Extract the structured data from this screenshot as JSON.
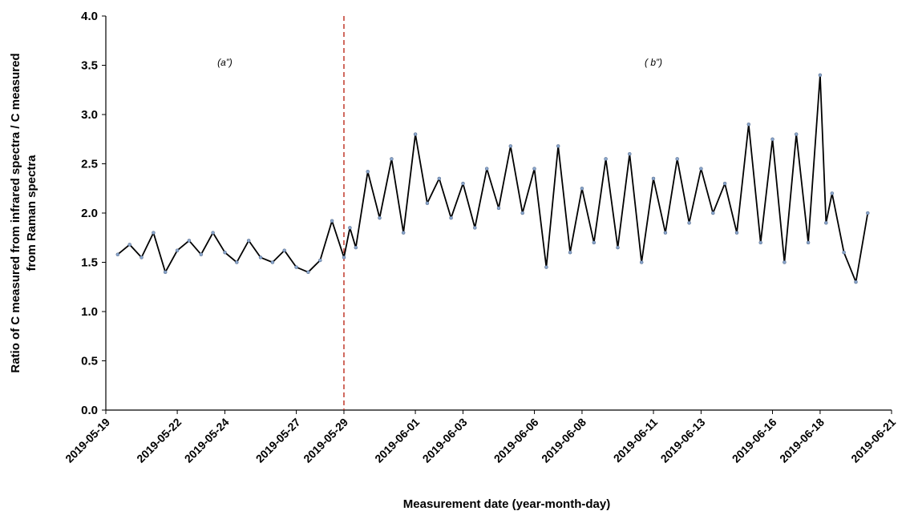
{
  "chart_data": {
    "type": "line",
    "title": "",
    "xlabel": "Measurement date (year-month-day)",
    "ylabel_lines": [
      "Ratio of C measured from infrared spectra / C measured",
      "from Raman spectra"
    ],
    "ylim": [
      0,
      4.0
    ],
    "yticks": [
      "0.0",
      "0.5",
      "1.0",
      "1.5",
      "2.0",
      "2.5",
      "3.0",
      "3.5",
      "4.0"
    ],
    "xlim": [
      "2019-05-19",
      "2019-06-21"
    ],
    "xticks": [
      "2019-05-19",
      "2019-05-22",
      "2019-05-24",
      "2019-05-27",
      "2019-05-29",
      "2019-06-01",
      "2019-06-03",
      "2019-06-06",
      "2019-06-08",
      "2019-06-11",
      "2019-06-13",
      "2019-06-16",
      "2019-06-18",
      "2019-06-21"
    ],
    "divider": {
      "x": "2019-05-29",
      "color": "#c0392b",
      "style": "dashed"
    },
    "regions": [
      {
        "label": "(a”)",
        "x": "2019-05-24"
      },
      {
        "label": "( b”)",
        "x": "2019-06-11"
      }
    ],
    "series": [
      {
        "line_color": "#000000",
        "marker_color": "#8aa6cc",
        "x": [
          "2019-05-19 12:00",
          "2019-05-20 00:00",
          "2019-05-20 12:00",
          "2019-05-21 00:00",
          "2019-05-21 12:00",
          "2019-05-22 00:00",
          "2019-05-22 12:00",
          "2019-05-23 00:00",
          "2019-05-23 12:00",
          "2019-05-24 00:00",
          "2019-05-24 12:00",
          "2019-05-25 00:00",
          "2019-05-25 12:00",
          "2019-05-26 00:00",
          "2019-05-26 12:00",
          "2019-05-27 00:00",
          "2019-05-27 12:00",
          "2019-05-28 00:00",
          "2019-05-28 12:00",
          "2019-05-29 00:00",
          "2019-05-29 06:00",
          "2019-05-29 12:00",
          "2019-05-30 00:00",
          "2019-05-30 12:00",
          "2019-05-31 00:00",
          "2019-05-31 12:00",
          "2019-06-01 00:00",
          "2019-06-01 12:00",
          "2019-06-02 00:00",
          "2019-06-02 12:00",
          "2019-06-03 00:00",
          "2019-06-03 12:00",
          "2019-06-04 00:00",
          "2019-06-04 12:00",
          "2019-06-05 00:00",
          "2019-06-05 12:00",
          "2019-06-06 00:00",
          "2019-06-06 12:00",
          "2019-06-07 00:00",
          "2019-06-07 12:00",
          "2019-06-08 00:00",
          "2019-06-08 12:00",
          "2019-06-09 00:00",
          "2019-06-09 12:00",
          "2019-06-10 00:00",
          "2019-06-10 12:00",
          "2019-06-11 00:00",
          "2019-06-11 12:00",
          "2019-06-12 00:00",
          "2019-06-12 12:00",
          "2019-06-13 00:00",
          "2019-06-13 12:00",
          "2019-06-14 00:00",
          "2019-06-14 12:00",
          "2019-06-15 00:00",
          "2019-06-15 12:00",
          "2019-06-16 00:00",
          "2019-06-16 12:00",
          "2019-06-17 00:00",
          "2019-06-17 12:00",
          "2019-06-18 00:00",
          "2019-06-18 06:00",
          "2019-06-18 12:00",
          "2019-06-19 00:00",
          "2019-06-19 12:00",
          "2019-06-20 00:00"
        ],
        "y": [
          1.58,
          1.68,
          1.55,
          1.8,
          1.4,
          1.62,
          1.72,
          1.58,
          1.8,
          1.6,
          1.5,
          1.72,
          1.55,
          1.5,
          1.62,
          1.45,
          1.4,
          1.52,
          1.92,
          1.55,
          1.85,
          1.65,
          2.42,
          1.95,
          2.55,
          1.8,
          2.8,
          2.1,
          2.35,
          1.95,
          2.3,
          1.85,
          2.45,
          2.05,
          2.68,
          2.0,
          2.45,
          1.45,
          2.68,
          1.6,
          2.25,
          1.7,
          2.55,
          1.65,
          2.6,
          1.5,
          2.35,
          1.8,
          2.55,
          1.9,
          2.45,
          2.0,
          2.3,
          1.8,
          2.9,
          1.7,
          2.75,
          1.5,
          2.8,
          1.7,
          3.4,
          1.9,
          2.2,
          1.6,
          1.3,
          2.0
        ]
      }
    ]
  }
}
